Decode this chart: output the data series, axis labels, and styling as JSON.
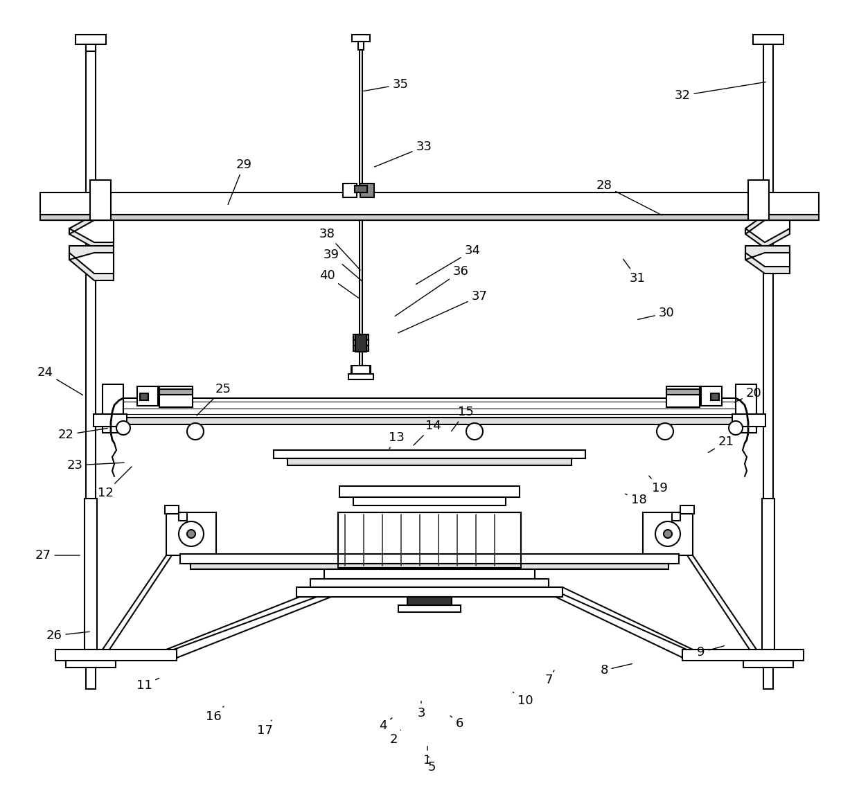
{
  "bg_color": "#ffffff",
  "lc": "#000000",
  "lw": 1.5,
  "tlw": 2.5,
  "annotations": [
    [
      "1",
      617,
      1098,
      617,
      1075
    ],
    [
      "2",
      568,
      1068,
      580,
      1052
    ],
    [
      "3",
      608,
      1030,
      608,
      1010
    ],
    [
      "4",
      553,
      1048,
      568,
      1035
    ],
    [
      "5",
      623,
      1108,
      618,
      1090
    ],
    [
      "6",
      663,
      1045,
      648,
      1032
    ],
    [
      "7",
      792,
      982,
      800,
      968
    ],
    [
      "8",
      872,
      968,
      915,
      958
    ],
    [
      "9",
      1012,
      942,
      1048,
      932
    ],
    [
      "10",
      758,
      1012,
      738,
      998
    ],
    [
      "11",
      208,
      990,
      232,
      978
    ],
    [
      "12",
      152,
      712,
      192,
      672
    ],
    [
      "13",
      572,
      632,
      562,
      648
    ],
    [
      "14",
      625,
      615,
      595,
      645
    ],
    [
      "15",
      672,
      595,
      650,
      625
    ],
    [
      "16",
      308,
      1035,
      325,
      1018
    ],
    [
      "17",
      382,
      1055,
      392,
      1040
    ],
    [
      "18",
      922,
      722,
      900,
      712
    ],
    [
      "19",
      952,
      705,
      935,
      685
    ],
    [
      "20",
      1088,
      568,
      1058,
      582
    ],
    [
      "21",
      1048,
      638,
      1020,
      655
    ],
    [
      "22",
      95,
      628,
      158,
      618
    ],
    [
      "23",
      108,
      672,
      182,
      668
    ],
    [
      "24",
      65,
      538,
      122,
      572
    ],
    [
      "25",
      322,
      562,
      282,
      602
    ],
    [
      "26",
      78,
      918,
      132,
      912
    ],
    [
      "27",
      62,
      802,
      118,
      802
    ],
    [
      "28",
      872,
      268,
      958,
      312
    ],
    [
      "29",
      352,
      238,
      328,
      298
    ],
    [
      "30",
      962,
      452,
      918,
      462
    ],
    [
      "31",
      920,
      402,
      898,
      372
    ],
    [
      "32",
      985,
      138,
      1108,
      118
    ],
    [
      "33",
      612,
      212,
      538,
      242
    ],
    [
      "34",
      682,
      362,
      598,
      412
    ],
    [
      "35",
      578,
      122,
      522,
      132
    ],
    [
      "36",
      665,
      392,
      568,
      458
    ],
    [
      "37",
      692,
      428,
      572,
      482
    ],
    [
      "38",
      472,
      338,
      522,
      392
    ],
    [
      "39",
      478,
      368,
      525,
      408
    ],
    [
      "40",
      472,
      398,
      520,
      432
    ]
  ]
}
